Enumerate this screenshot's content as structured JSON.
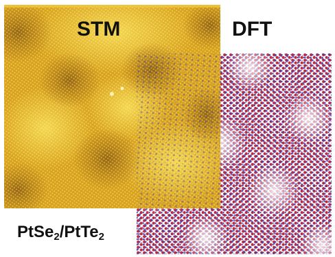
{
  "labels": {
    "stm": "STM",
    "dft": "DFT",
    "formula": {
      "part1": "PtSe",
      "sub1": "2",
      "slash": "/PtTe",
      "sub2": "2"
    }
  },
  "colors": {
    "stm_gold": "#d9a21b",
    "stm_dark": "#9a6a10",
    "stm_light": "#f3d34a",
    "dft_red": "#c0283c",
    "dft_blue": "#4a3fb5",
    "dft_white": "#ffffff"
  }
}
